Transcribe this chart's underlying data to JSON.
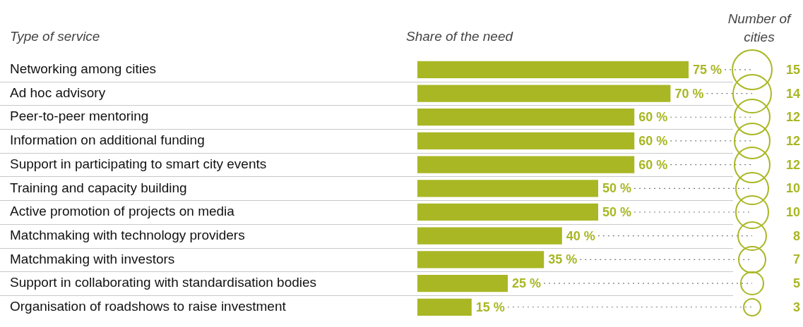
{
  "chart_data": {
    "type": "bar",
    "orientation": "horizontal",
    "ylabel": "Type of service",
    "xlabel": "Share of the need",
    "grid": "y",
    "categories": [
      "Networking among cities",
      "Ad hoc advisory",
      "Peer-to-peer mentoring",
      "Information on additional funding",
      "Support in participating to smart city events",
      "Training and capacity building",
      "Active promotion of projects on media",
      "Matchmaking with technology providers",
      "Matchmaking with investors",
      "Support in collaborating with standardisation bodies",
      "Organisation of roadshows to raise investment"
    ],
    "series": [
      {
        "color": "#a9b724",
        "values": [
          75,
          70,
          60,
          60,
          60,
          50,
          50,
          40,
          35,
          25,
          15
        ],
        "value_labels": [
          "75 %",
          "70 %",
          "60 %",
          "60 %",
          "60 %",
          "50 %",
          "50 %",
          "40 %",
          "35 %",
          "25 %",
          "15 %"
        ]
      }
    ],
    "annotations": [
      "Number of cities",
      "15",
      "14",
      "12",
      "12",
      "12",
      "10",
      "10",
      "8",
      "7",
      "5",
      "3"
    ]
  }
}
